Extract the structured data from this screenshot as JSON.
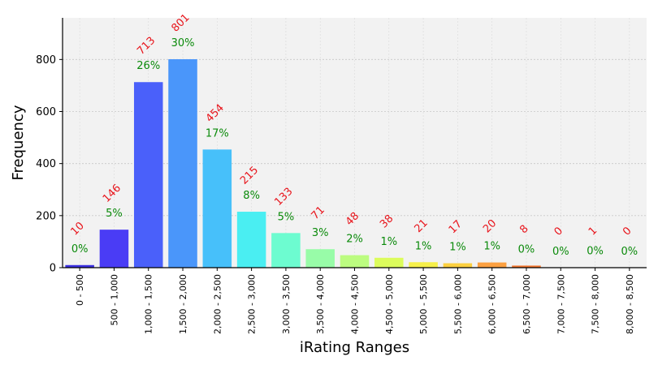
{
  "chart_data": {
    "type": "bar",
    "title": "",
    "xlabel": "iRating Ranges",
    "ylabel": "Frequency",
    "ylim": [
      0,
      960
    ],
    "yticks": [
      0,
      200,
      400,
      600,
      800
    ],
    "grid": true,
    "categories": [
      "0 - 500",
      "500 - 1,000",
      "1,000 - 1,500",
      "1,500 - 2,000",
      "2,000 - 2,500",
      "2,500 - 3,000",
      "3,000 - 3,500",
      "3,500 - 4,000",
      "4,000 - 4,500",
      "4,500 - 5,000",
      "5,000 - 5,500",
      "5,500 - 6,000",
      "6,000 - 6,500",
      "6,500 - 7,000",
      "7,000 - 7,500",
      "7,500 - 8,000",
      "8,000 - 8,500"
    ],
    "values": [
      10,
      146,
      713,
      801,
      454,
      215,
      133,
      71,
      48,
      38,
      21,
      17,
      20,
      8,
      0,
      1,
      0
    ],
    "percent_labels": [
      "0%",
      "5%",
      "26%",
      "30%",
      "17%",
      "8%",
      "5%",
      "3%",
      "2%",
      "1%",
      "1%",
      "1%",
      "1%",
      "0%",
      "0%",
      "0%",
      "0%"
    ],
    "count_labels": [
      "10",
      "146",
      "713",
      "801",
      "454",
      "215",
      "133",
      "71",
      "48",
      "38",
      "21",
      "17",
      "20",
      "8",
      "0",
      "1",
      "0"
    ],
    "bar_colors": [
      "#3b30e0",
      "#4a3cf5",
      "#4a60fa",
      "#4a96fa",
      "#47c0fa",
      "#4aeef2",
      "#6dfcd0",
      "#98fca8",
      "#bcfc80",
      "#dcfc5c",
      "#f6f04a",
      "#fcd040",
      "#fca040",
      "#f27630",
      "#e84a20",
      "#e02a18",
      "#d01010"
    ]
  }
}
